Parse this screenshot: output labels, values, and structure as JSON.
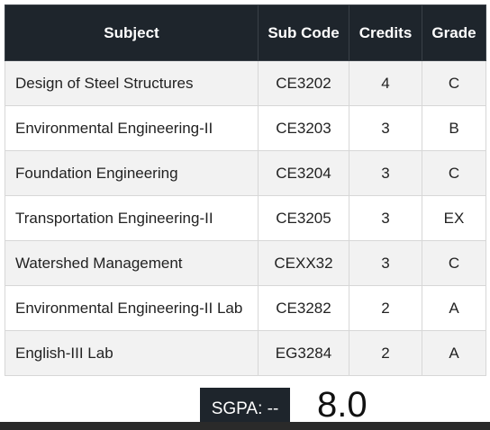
{
  "table": {
    "headers": {
      "subject": "Subject",
      "code": "Sub Code",
      "credits": "Credits",
      "grade": "Grade"
    },
    "rows": [
      {
        "subject": "Design of Steel Structures",
        "code": "CE3202",
        "credits": "4",
        "grade": "C"
      },
      {
        "subject": "Environmental Engineering-II",
        "code": "CE3203",
        "credits": "3",
        "grade": "B"
      },
      {
        "subject": "Foundation Engineering",
        "code": "CE3204",
        "credits": "3",
        "grade": "C"
      },
      {
        "subject": "Transportation Engineering-II",
        "code": "CE3205",
        "credits": "3",
        "grade": "EX"
      },
      {
        "subject": "Watershed Management",
        "code": "CEXX32",
        "credits": "3",
        "grade": "C"
      },
      {
        "subject": "Environmental Engineering-II Lab",
        "code": "CE3282",
        "credits": "2",
        "grade": "A"
      },
      {
        "subject": "English-III Lab",
        "code": "EG3284",
        "credits": "2",
        "grade": "A"
      }
    ]
  },
  "sgpa": {
    "label": "SGPA: --",
    "value": "8.0"
  },
  "colors": {
    "header_bg": "#1e252c",
    "row_alt_bg": "#f2f2f2"
  }
}
